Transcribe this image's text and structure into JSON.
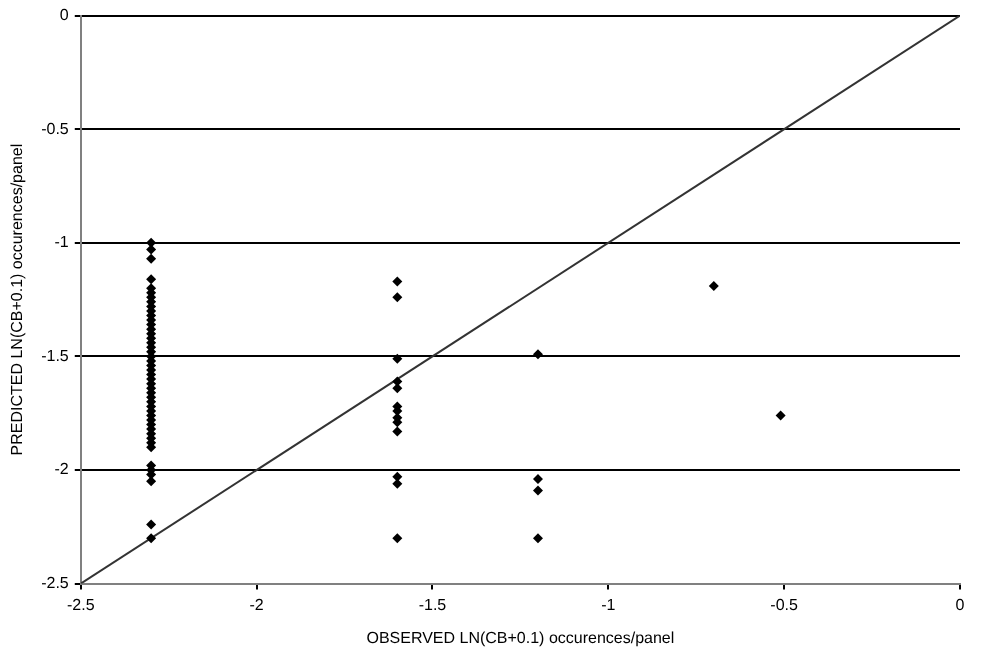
{
  "chart_data": {
    "type": "scatter",
    "xlabel": "OBSERVED LN(CB+0.1) occurences/panel",
    "ylabel": "PREDICTED LN(CB+0.1) occurences/panel",
    "xlim": [
      -2.5,
      0
    ],
    "ylim": [
      -2.5,
      0
    ],
    "xticks": [
      -2.5,
      -2,
      -1.5,
      -1,
      -0.5,
      0
    ],
    "yticks": [
      -2.5,
      -2,
      -1.5,
      -1,
      -0.5,
      0
    ],
    "grid": "y",
    "legend": false,
    "marker": "diamond",
    "series": [
      {
        "color": "#000000",
        "x": [
          -2.3,
          -2.3,
          -2.3,
          -2.3,
          -2.3,
          -2.3,
          -2.3,
          -2.3,
          -2.3,
          -2.3,
          -2.3,
          -2.3,
          -2.3,
          -2.3,
          -2.3,
          -2.3,
          -2.3,
          -2.3,
          -2.3,
          -2.3,
          -2.3,
          -2.3,
          -2.3,
          -2.3,
          -2.3,
          -2.3,
          -2.3,
          -2.3,
          -2.3,
          -2.3,
          -2.3,
          -2.3,
          -2.3,
          -2.3,
          -2.3,
          -2.3,
          -2.3,
          -2.3,
          -2.3,
          -2.3,
          -2.3,
          -2.3,
          -2.3,
          -2.3,
          -2.3,
          -2.3,
          -1.6,
          -1.6,
          -1.6,
          -1.6,
          -1.6,
          -1.6,
          -1.6,
          -1.6,
          -1.6,
          -1.6,
          -1.6,
          -1.6,
          -1.6,
          -1.2,
          -1.2,
          -1.2,
          -1.2,
          -0.7,
          -0.51
        ],
        "values": [
          -1.0,
          -1.03,
          -1.07,
          -1.16,
          -1.2,
          -1.22,
          -1.24,
          -1.26,
          -1.28,
          -1.3,
          -1.32,
          -1.34,
          -1.36,
          -1.38,
          -1.4,
          -1.42,
          -1.44,
          -1.46,
          -1.48,
          -1.5,
          -1.52,
          -1.54,
          -1.56,
          -1.58,
          -1.6,
          -1.62,
          -1.64,
          -1.66,
          -1.68,
          -1.7,
          -1.72,
          -1.74,
          -1.76,
          -1.78,
          -1.8,
          -1.82,
          -1.84,
          -1.86,
          -1.88,
          -1.9,
          -1.98,
          -2.0,
          -2.02,
          -2.05,
          -2.24,
          -2.3,
          -1.17,
          -1.24,
          -1.51,
          -1.61,
          -1.64,
          -1.72,
          -1.74,
          -1.77,
          -1.79,
          -1.83,
          -2.03,
          -2.06,
          -2.3,
          -1.49,
          -2.04,
          -2.09,
          -2.3,
          -1.19,
          -1.76
        ]
      },
      {
        "type": "line",
        "color": "#333333",
        "marker": "none",
        "x": [
          -2.5,
          0
        ],
        "values": [
          -2.5,
          0
        ]
      }
    ]
  }
}
